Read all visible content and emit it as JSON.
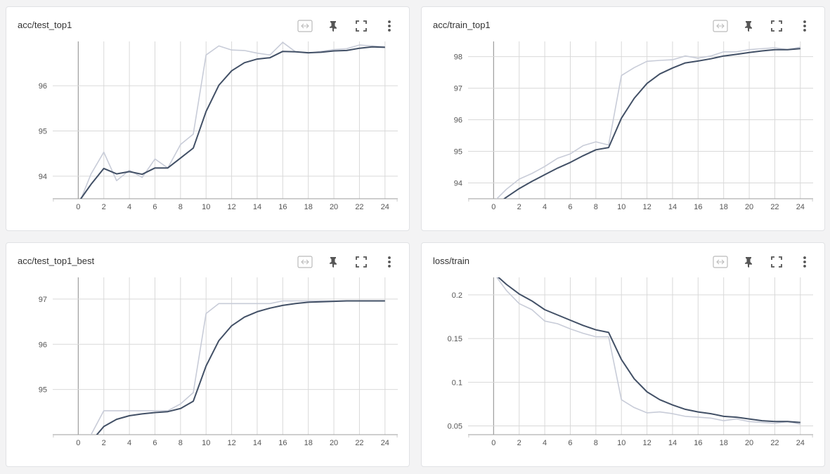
{
  "colors": {
    "smoothed": "#425066",
    "raw": "#c8ccd8",
    "grid": "#d9d9d9",
    "axis": "#9e9e9e",
    "card_border": "#e1e2e5",
    "background": "#f3f3f4"
  },
  "toolbar_icons": [
    "fit-domain-icon",
    "pin-icon",
    "fullscreen-icon",
    "more-vert-icon"
  ],
  "chart_data": [
    {
      "type": "line",
      "title": "acc/test_top1",
      "xlabel": "",
      "ylabel": "",
      "xlim": [
        -2,
        25
      ],
      "ylim": [
        93.5,
        96.98
      ],
      "x_ticks": [
        0,
        2,
        4,
        6,
        8,
        10,
        12,
        14,
        16,
        18,
        20,
        22,
        24
      ],
      "x_tick_labels": [
        "0",
        "2",
        "4",
        "6",
        "8",
        "10",
        "12",
        "14",
        "16",
        "18",
        "20",
        "22",
        "24"
      ],
      "y_ticks": [
        94,
        95,
        96
      ],
      "y_tick_labels": [
        "94",
        "95",
        "96"
      ],
      "grid": true,
      "series": [
        {
          "role": "raw",
          "x": [
            0,
            1,
            2,
            3,
            4,
            5,
            6,
            7,
            8,
            9,
            10,
            11,
            12,
            13,
            14,
            15,
            16,
            17,
            18,
            19,
            20,
            21,
            22,
            23,
            24
          ],
          "y": [
            93.35,
            94.05,
            94.53,
            93.9,
            94.13,
            93.97,
            94.38,
            94.18,
            94.7,
            94.93,
            96.68,
            96.88,
            96.79,
            96.78,
            96.72,
            96.68,
            96.96,
            96.75,
            96.72,
            96.76,
            96.8,
            96.82,
            96.9,
            96.88,
            96.86
          ]
        },
        {
          "role": "smoothed",
          "x": [
            0,
            1,
            2,
            3,
            4,
            5,
            6,
            7,
            8,
            9,
            10,
            11,
            12,
            13,
            14,
            15,
            16,
            17,
            18,
            19,
            20,
            21,
            22,
            23,
            24
          ],
          "y": [
            93.42,
            93.82,
            94.17,
            94.05,
            94.1,
            94.04,
            94.18,
            94.18,
            94.4,
            94.62,
            95.43,
            96.01,
            96.33,
            96.51,
            96.59,
            96.62,
            96.76,
            96.75,
            96.73,
            96.74,
            96.77,
            96.78,
            96.83,
            96.86,
            96.85
          ]
        }
      ]
    },
    {
      "type": "line",
      "title": "acc/train_top1",
      "xlabel": "",
      "ylabel": "",
      "xlim": [
        -2,
        25
      ],
      "ylim": [
        93.5,
        98.48
      ],
      "x_ticks": [
        0,
        2,
        4,
        6,
        8,
        10,
        12,
        14,
        16,
        18,
        20,
        22,
        24
      ],
      "x_tick_labels": [
        "0",
        "2",
        "4",
        "6",
        "8",
        "10",
        "12",
        "14",
        "16",
        "18",
        "20",
        "22",
        "24"
      ],
      "y_ticks": [
        94,
        95,
        96,
        97,
        98
      ],
      "y_tick_labels": [
        "94",
        "95",
        "96",
        "97",
        "98"
      ],
      "grid": true,
      "series": [
        {
          "role": "raw",
          "x": [
            0,
            1,
            2,
            3,
            4,
            5,
            6,
            7,
            8,
            9,
            10,
            11,
            12,
            13,
            14,
            15,
            16,
            17,
            18,
            19,
            20,
            21,
            22,
            23,
            24
          ],
          "y": [
            93.4,
            93.8,
            94.12,
            94.3,
            94.52,
            94.78,
            94.92,
            95.18,
            95.3,
            95.2,
            97.4,
            97.65,
            97.85,
            97.88,
            97.9,
            98.02,
            97.95,
            98.02,
            98.15,
            98.15,
            98.22,
            98.25,
            98.28,
            98.22,
            98.3
          ]
        },
        {
          "role": "smoothed",
          "x": [
            0,
            1,
            2,
            3,
            4,
            5,
            6,
            7,
            8,
            9,
            10,
            11,
            12,
            13,
            14,
            15,
            16,
            17,
            18,
            19,
            20,
            21,
            22,
            23,
            24
          ],
          "y": [
            93.25,
            93.55,
            93.82,
            94.05,
            94.26,
            94.47,
            94.65,
            94.86,
            95.05,
            95.12,
            96.05,
            96.68,
            97.15,
            97.45,
            97.64,
            97.8,
            97.86,
            97.93,
            98.02,
            98.07,
            98.13,
            98.18,
            98.22,
            98.22,
            98.25
          ]
        }
      ]
    },
    {
      "type": "line",
      "title": "acc/test_top1_best",
      "xlabel": "",
      "ylabel": "",
      "xlim": [
        -2,
        25
      ],
      "ylim": [
        94.0,
        97.48
      ],
      "x_ticks": [
        0,
        2,
        4,
        6,
        8,
        10,
        12,
        14,
        16,
        18,
        20,
        22,
        24
      ],
      "x_tick_labels": [
        "0",
        "2",
        "4",
        "6",
        "8",
        "10",
        "12",
        "14",
        "16",
        "18",
        "20",
        "22",
        "24"
      ],
      "y_ticks": [
        95,
        96,
        97
      ],
      "y_tick_labels": [
        "95",
        "96",
        "97"
      ],
      "grid": true,
      "series": [
        {
          "role": "raw",
          "x": [
            0,
            1,
            2,
            3,
            4,
            5,
            6,
            7,
            8,
            9,
            10,
            11,
            12,
            13,
            14,
            15,
            16,
            17,
            18,
            19,
            20,
            21,
            22,
            23,
            24
          ],
          "y": [
            93.7,
            94.0,
            94.53,
            94.53,
            94.53,
            94.53,
            94.53,
            94.53,
            94.68,
            94.93,
            96.68,
            96.9,
            96.9,
            96.9,
            96.9,
            96.9,
            96.96,
            96.96,
            96.96,
            96.96,
            96.96,
            96.96,
            96.96,
            96.96,
            96.96
          ]
        },
        {
          "role": "smoothed",
          "x": [
            0,
            1,
            2,
            3,
            4,
            5,
            6,
            7,
            8,
            9,
            10,
            11,
            12,
            13,
            14,
            15,
            16,
            17,
            18,
            19,
            20,
            21,
            22,
            23,
            24
          ],
          "y": [
            93.7,
            93.85,
            94.18,
            94.34,
            94.42,
            94.46,
            94.49,
            94.51,
            94.58,
            94.74,
            95.52,
            96.08,
            96.41,
            96.6,
            96.72,
            96.8,
            96.86,
            96.9,
            96.93,
            96.94,
            96.95,
            96.96,
            96.96,
            96.96,
            96.96
          ]
        }
      ]
    },
    {
      "type": "line",
      "title": "loss/train",
      "xlabel": "",
      "ylabel": "",
      "xlim": [
        -2,
        25
      ],
      "ylim": [
        0.04,
        0.22
      ],
      "x_ticks": [
        0,
        2,
        4,
        6,
        8,
        10,
        12,
        14,
        16,
        18,
        20,
        22,
        24
      ],
      "x_tick_labels": [
        "0",
        "2",
        "4",
        "6",
        "8",
        "10",
        "12",
        "14",
        "16",
        "18",
        "20",
        "22",
        "24"
      ],
      "y_ticks": [
        0.05,
        0.1,
        0.15,
        0.2
      ],
      "y_tick_labels": [
        "0.05",
        "0.1",
        "0.15",
        "0.2"
      ],
      "grid": true,
      "series": [
        {
          "role": "raw",
          "x": [
            0,
            1,
            2,
            3,
            4,
            5,
            6,
            7,
            8,
            9,
            10,
            11,
            12,
            13,
            14,
            15,
            16,
            17,
            18,
            19,
            20,
            21,
            22,
            23,
            24
          ],
          "y": [
            0.225,
            0.205,
            0.19,
            0.183,
            0.17,
            0.167,
            0.161,
            0.156,
            0.152,
            0.152,
            0.08,
            0.071,
            0.065,
            0.066,
            0.064,
            0.061,
            0.06,
            0.059,
            0.056,
            0.058,
            0.055,
            0.054,
            0.053,
            0.055,
            0.052
          ]
        },
        {
          "role": "smoothed",
          "x": [
            0,
            1,
            2,
            3,
            4,
            5,
            6,
            7,
            8,
            9,
            10,
            11,
            12,
            13,
            14,
            15,
            16,
            17,
            18,
            19,
            20,
            21,
            22,
            23,
            24
          ],
          "y": [
            0.225,
            0.212,
            0.201,
            0.193,
            0.183,
            0.177,
            0.171,
            0.165,
            0.16,
            0.157,
            0.126,
            0.104,
            0.089,
            0.08,
            0.074,
            0.069,
            0.066,
            0.064,
            0.061,
            0.06,
            0.058,
            0.056,
            0.055,
            0.055,
            0.054
          ]
        }
      ]
    }
  ]
}
